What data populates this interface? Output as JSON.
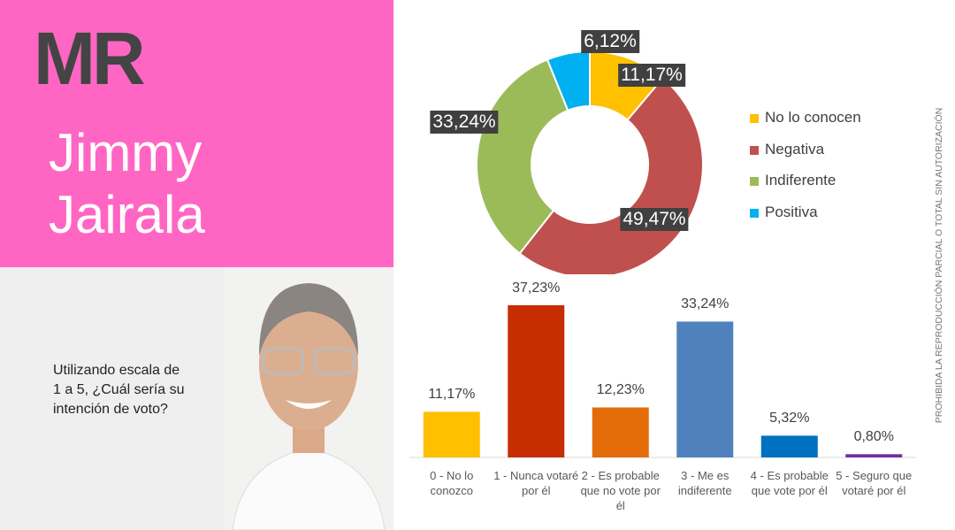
{
  "header": {
    "logo": "MR",
    "name": "Jimmy Jairala"
  },
  "question": "Utilizando escala de 1 a 5, ¿Cuál sería su intención de voto?",
  "side_note": "PROHIBIDA LA REPRODUCCIÓN PARCIAL O TOTAL SIN AUTORIZACIÓN",
  "chart_data": [
    {
      "type": "donut",
      "series": [
        {
          "name": "No lo conocen",
          "color": "#ffc000",
          "values": [
            11.17
          ],
          "value_labels": [
            "11,17%"
          ]
        },
        {
          "name": "Negativa",
          "color": "#c0504d",
          "values": [
            49.47
          ],
          "value_labels": [
            "49,47%"
          ]
        },
        {
          "name": "Indiferente",
          "color": "#9bbb59",
          "values": [
            33.24
          ],
          "value_labels": [
            "33,24%"
          ]
        },
        {
          "name": "Positiva",
          "color": "#00b0f0",
          "values": [
            6.12
          ],
          "value_labels": [
            "6,12%"
          ]
        }
      ]
    },
    {
      "type": "bar",
      "categories": [
        "0 - No lo conozco",
        "1 - Nunca votaré por él",
        "2 - Es probable que no vote por él",
        "3 - Me es indiferente",
        "4 - Es probable que vote por él",
        "5 - Seguro que votaré por él"
      ],
      "values": [
        11.17,
        37.23,
        12.23,
        33.24,
        5.32,
        0.8
      ],
      "value_labels": [
        "11,17%",
        "37,23%",
        "12,23%",
        "33,24%",
        "5,32%",
        "0,80%"
      ],
      "colors": [
        "#ffc000",
        "#c62d00",
        "#e36c09",
        "#4f81bd",
        "#0070c0",
        "#7030a0"
      ]
    }
  ]
}
